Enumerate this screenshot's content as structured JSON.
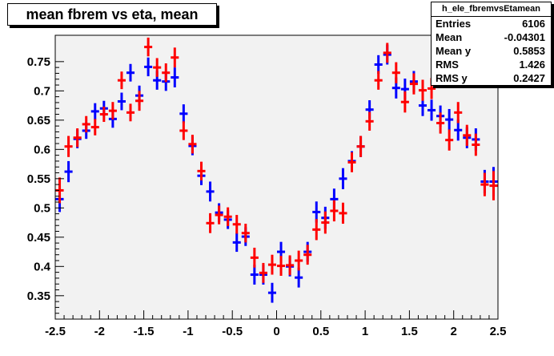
{
  "chart_data": {
    "type": "scatter",
    "title": "mean fbrem vs eta, mean",
    "xlabel": "",
    "ylabel": "",
    "xlim": [
      -2.5,
      2.5
    ],
    "ylim": [
      0.31,
      0.795
    ],
    "x_ticks": [
      -2.5,
      -2,
      -1.5,
      -1,
      -0.5,
      0,
      0.5,
      1,
      1.5,
      2,
      2.5
    ],
    "x_tick_labels": [
      "-2.5",
      "-2",
      "-1.5",
      "-1",
      "-0.5",
      "0",
      "0.5",
      "1",
      "1.5",
      "2",
      "2.5"
    ],
    "y_ticks": [
      0.35,
      0.4,
      0.45,
      0.5,
      0.55,
      0.6,
      0.65,
      0.7,
      0.75
    ],
    "y_tick_labels": [
      "0.35",
      "0.4",
      "0.45",
      "0.5",
      "0.55",
      "0.6",
      "0.65",
      "0.7",
      "0.75"
    ],
    "grid": false,
    "background_color": "#f2f2f2",
    "series": [
      {
        "color": "#0000ff",
        "x": [
          -2.45,
          -2.35,
          -2.25,
          -2.15,
          -2.05,
          -1.95,
          -1.85,
          -1.75,
          -1.65,
          -1.55,
          -1.45,
          -1.35,
          -1.25,
          -1.15,
          -1.05,
          -0.95,
          -0.85,
          -0.75,
          -0.65,
          -0.55,
          -0.45,
          -0.35,
          -0.25,
          -0.15,
          -0.05,
          0.05,
          0.15,
          0.25,
          0.35,
          0.45,
          0.55,
          0.65,
          0.75,
          0.85,
          0.95,
          1.05,
          1.15,
          1.25,
          1.35,
          1.45,
          1.55,
          1.65,
          1.75,
          1.85,
          1.95,
          2.05,
          2.15,
          2.25,
          2.35,
          2.45
        ],
        "y": [
          0.515,
          0.562,
          0.618,
          0.632,
          0.665,
          0.67,
          0.652,
          0.682,
          0.731,
          0.692,
          0.741,
          0.718,
          0.716,
          0.723,
          0.661,
          0.606,
          0.555,
          0.528,
          0.492,
          0.48,
          0.441,
          0.451,
          0.386,
          0.386,
          0.355,
          0.425,
          0.4,
          0.381,
          0.425,
          0.493,
          0.483,
          0.515,
          0.55,
          0.58,
          0.605,
          0.668,
          0.745,
          0.762,
          0.705,
          0.703,
          0.716,
          0.675,
          0.667,
          0.657,
          0.651,
          0.633,
          0.62,
          0.617,
          0.545,
          0.545
        ],
        "yerr": [
          0.022,
          0.018,
          0.016,
          0.014,
          0.014,
          0.013,
          0.015,
          0.015,
          0.015,
          0.017,
          0.016,
          0.016,
          0.016,
          0.017,
          0.016,
          0.016,
          0.016,
          0.017,
          0.016,
          0.016,
          0.016,
          0.016,
          0.017,
          0.017,
          0.017,
          0.017,
          0.017,
          0.017,
          0.017,
          0.018,
          0.019,
          0.018,
          0.018,
          0.017,
          0.018,
          0.016,
          0.016,
          0.017,
          0.018,
          0.018,
          0.018,
          0.018,
          0.018,
          0.018,
          0.018,
          0.018,
          0.018,
          0.019,
          0.02,
          0.025
        ]
      },
      {
        "color": "#ff0000",
        "x": [
          -2.45,
          -2.35,
          -2.25,
          -2.15,
          -2.05,
          -1.95,
          -1.85,
          -1.75,
          -1.65,
          -1.55,
          -1.45,
          -1.35,
          -1.25,
          -1.15,
          -1.05,
          -0.95,
          -0.85,
          -0.75,
          -0.65,
          -0.55,
          -0.45,
          -0.35,
          -0.25,
          -0.15,
          -0.05,
          0.05,
          0.15,
          0.25,
          0.35,
          0.45,
          0.55,
          0.65,
          0.75,
          0.85,
          0.95,
          1.05,
          1.15,
          1.25,
          1.35,
          1.45,
          1.55,
          1.65,
          1.75,
          1.85,
          1.95,
          2.05,
          2.15,
          2.25,
          2.35,
          2.45
        ],
        "y": [
          0.53,
          0.605,
          0.62,
          0.643,
          0.638,
          0.66,
          0.666,
          0.718,
          0.663,
          0.683,
          0.775,
          0.74,
          0.731,
          0.757,
          0.632,
          0.609,
          0.563,
          0.474,
          0.488,
          0.485,
          0.472,
          0.457,
          0.415,
          0.389,
          0.403,
          0.401,
          0.402,
          0.41,
          0.42,
          0.463,
          0.475,
          0.495,
          0.491,
          0.578,
          0.605,
          0.648,
          0.718,
          0.765,
          0.731,
          0.681,
          0.712,
          0.701,
          0.704,
          0.645,
          0.616,
          0.663,
          0.624,
          0.608,
          0.54,
          0.538
        ],
        "yerr": [
          0.022,
          0.018,
          0.016,
          0.014,
          0.014,
          0.013,
          0.015,
          0.015,
          0.015,
          0.017,
          0.016,
          0.016,
          0.016,
          0.017,
          0.016,
          0.016,
          0.016,
          0.017,
          0.016,
          0.016,
          0.016,
          0.016,
          0.017,
          0.017,
          0.017,
          0.017,
          0.017,
          0.017,
          0.017,
          0.018,
          0.019,
          0.018,
          0.018,
          0.017,
          0.018,
          0.016,
          0.016,
          0.017,
          0.018,
          0.018,
          0.018,
          0.018,
          0.018,
          0.018,
          0.018,
          0.018,
          0.018,
          0.019,
          0.02,
          0.025
        ]
      }
    ]
  },
  "stats_box": {
    "title": "h_ele_fbremvsEtamean",
    "rows": [
      {
        "label": "Entries",
        "value": "6106"
      },
      {
        "label": "Mean",
        "value": "-0.04301"
      },
      {
        "label": "Mean y",
        "value": "0.5853"
      },
      {
        "label": "RMS",
        "value": "1.426"
      },
      {
        "label": "RMS y",
        "value": "0.2427"
      }
    ]
  }
}
